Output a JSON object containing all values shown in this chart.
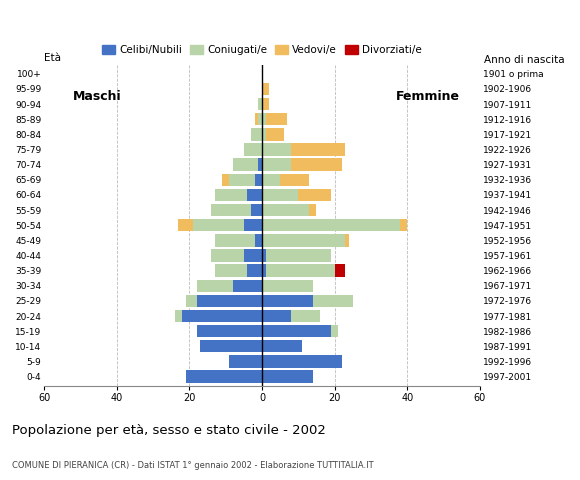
{
  "age_groups": [
    "0-4",
    "5-9",
    "10-14",
    "15-19",
    "20-24",
    "25-29",
    "30-34",
    "35-39",
    "40-44",
    "45-49",
    "50-54",
    "55-59",
    "60-64",
    "65-69",
    "70-74",
    "75-79",
    "80-84",
    "85-89",
    "90-94",
    "95-99",
    "100+"
  ],
  "birth_years": [
    "1997-2001",
    "1992-1996",
    "1987-1991",
    "1982-1986",
    "1977-1981",
    "1972-1976",
    "1967-1971",
    "1962-1966",
    "1957-1961",
    "1952-1956",
    "1947-1951",
    "1942-1946",
    "1937-1941",
    "1932-1936",
    "1927-1931",
    "1922-1926",
    "1917-1921",
    "1912-1916",
    "1907-1911",
    "1902-1906",
    "1901 o prima"
  ],
  "males": {
    "celibi": [
      21,
      9,
      17,
      18,
      22,
      18,
      8,
      4,
      5,
      2,
      5,
      3,
      4,
      2,
      1,
      0,
      0,
      0,
      0,
      0,
      0
    ],
    "coniugati": [
      0,
      0,
      0,
      0,
      2,
      3,
      10,
      9,
      9,
      11,
      14,
      11,
      9,
      7,
      7,
      5,
      3,
      1,
      1,
      0,
      0
    ],
    "vedovi": [
      0,
      0,
      0,
      0,
      0,
      0,
      0,
      0,
      0,
      0,
      4,
      0,
      0,
      2,
      0,
      0,
      0,
      1,
      0,
      0,
      0
    ],
    "divorziati": [
      0,
      0,
      0,
      0,
      0,
      0,
      0,
      0,
      0,
      0,
      0,
      0,
      0,
      0,
      0,
      0,
      0,
      0,
      0,
      0,
      0
    ]
  },
  "females": {
    "nubili": [
      14,
      22,
      11,
      19,
      8,
      14,
      0,
      1,
      1,
      0,
      0,
      0,
      0,
      0,
      0,
      0,
      0,
      0,
      0,
      0,
      0
    ],
    "coniugate": [
      0,
      0,
      0,
      2,
      8,
      11,
      14,
      19,
      18,
      23,
      38,
      13,
      10,
      5,
      8,
      8,
      1,
      1,
      0,
      0,
      0
    ],
    "vedove": [
      0,
      0,
      0,
      0,
      0,
      0,
      0,
      0,
      0,
      1,
      2,
      2,
      9,
      8,
      14,
      15,
      5,
      6,
      2,
      2,
      0
    ],
    "divorziate": [
      0,
      0,
      0,
      0,
      0,
      0,
      0,
      3,
      0,
      0,
      0,
      0,
      0,
      0,
      0,
      0,
      0,
      0,
      0,
      0,
      0
    ]
  },
  "color_celibi": "#4472c4",
  "color_coniugati": "#b8d4a8",
  "color_vedovi": "#f0bc5e",
  "color_divorziati": "#c00000",
  "title": "Popolazione per età, sesso e stato civile - 2002",
  "subtitle": "COMUNE DI PIERANICA (CR) - Dati ISTAT 1° gennaio 2002 - Elaborazione TUTTITALIA.IT",
  "xlabel_left": "Maschi",
  "xlabel_right": "Femmine",
  "ylabel_left": "Età",
  "ylabel_right": "Anno di nascita",
  "xlim": 60,
  "legend_labels": [
    "Celibi/Nubili",
    "Coniugati/e",
    "Vedovi/e",
    "Divorziati/e"
  ],
  "background_color": "#ffffff",
  "grid_color": "#bbbbbb"
}
